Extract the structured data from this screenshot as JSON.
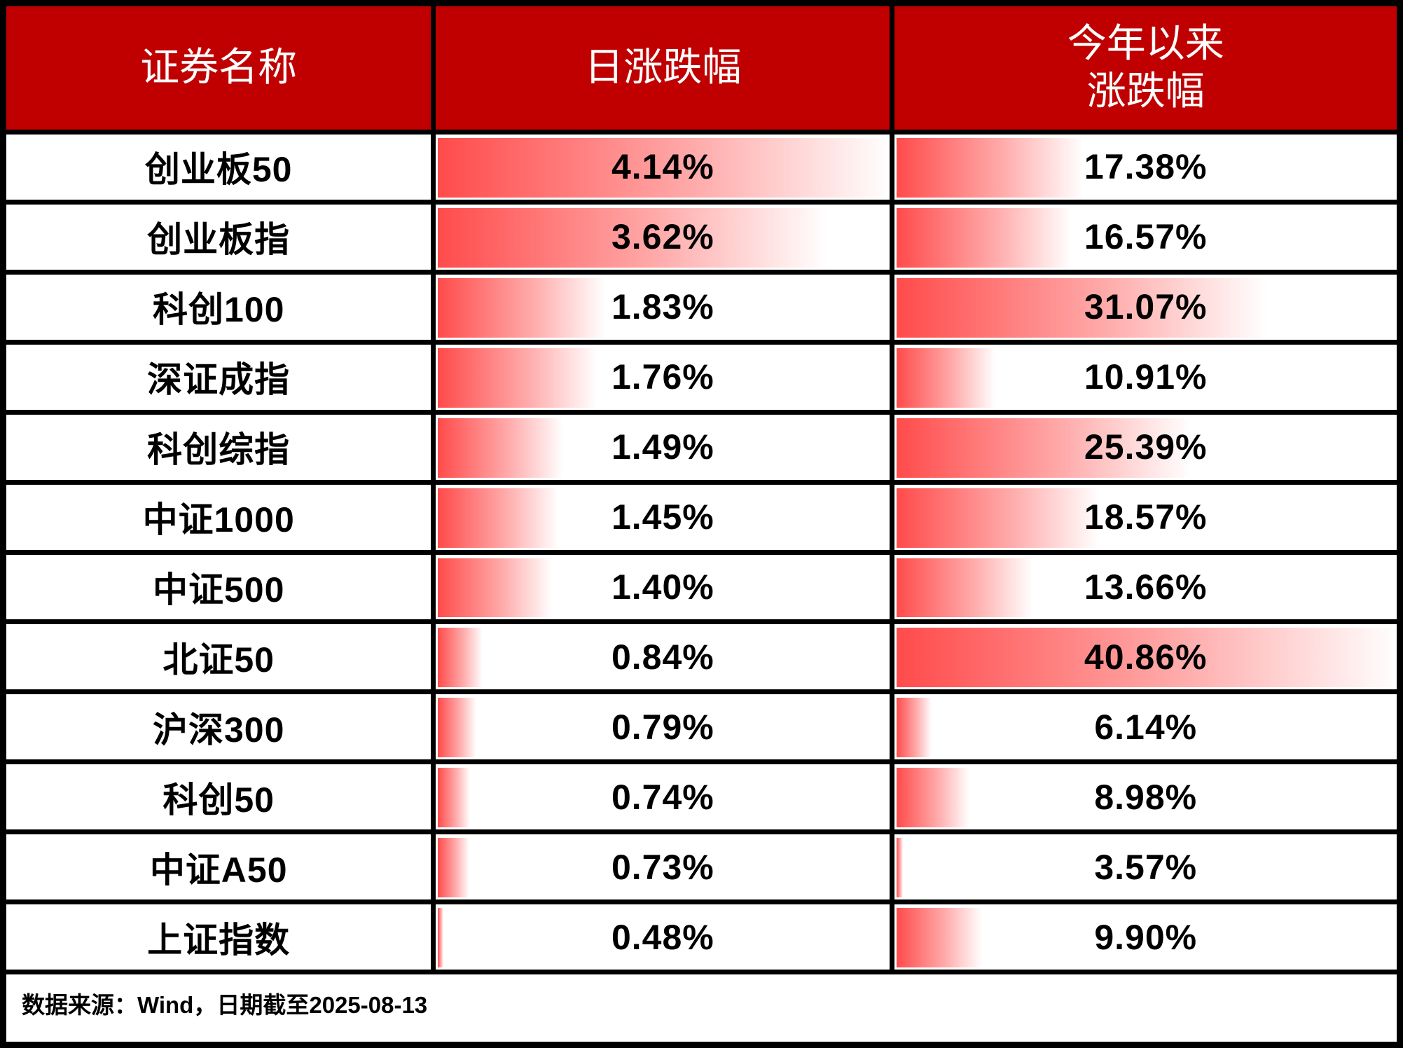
{
  "table": {
    "header": {
      "name_col": "证券名称",
      "daily_col": "日涨跌幅",
      "ytd_col_line1": "今年以来",
      "ytd_col_line2": "涨跌幅"
    },
    "rows": [
      {
        "name": "创业板50",
        "daily": "4.14%",
        "ytd": "17.38%"
      },
      {
        "name": "创业板指",
        "daily": "3.62%",
        "ytd": "16.57%"
      },
      {
        "name": "科创100",
        "daily": "1.83%",
        "ytd": "31.07%"
      },
      {
        "name": "深证成指",
        "daily": "1.76%",
        "ytd": "10.91%"
      },
      {
        "name": "科创综指",
        "daily": "1.49%",
        "ytd": "25.39%"
      },
      {
        "name": "中证1000",
        "daily": "1.45%",
        "ytd": "18.57%"
      },
      {
        "name": "中证500",
        "daily": "1.40%",
        "ytd": "13.66%"
      },
      {
        "name": "北证50",
        "daily": "0.84%",
        "ytd": "40.86%"
      },
      {
        "name": "沪深300",
        "daily": "0.79%",
        "ytd": "6.14%"
      },
      {
        "name": "科创50",
        "daily": "0.74%",
        "ytd": "8.98%"
      },
      {
        "name": "中证A50",
        "daily": "0.73%",
        "ytd": "3.57%"
      },
      {
        "name": "上证指数",
        "daily": "0.48%",
        "ytd": "9.90%"
      }
    ],
    "footer": "数据来源：Wind，日期截至2025-08-13"
  },
  "bar_scale": {
    "daily": {
      "min": 0.48,
      "max": 4.14
    },
    "ytd": {
      "min": 3.57,
      "max": 40.86
    },
    "min_pct": 1.2
  },
  "colors": {
    "header_bg": "#C00000",
    "header_text": "#FFFFFF",
    "bar_start": "#FF4B4B",
    "bar_mid": "#FFADAD",
    "bar_end": "#FFFFFF",
    "border": "#000000",
    "value_text": "#000000"
  },
  "chart_data": {
    "type": "table",
    "title": "",
    "columns": [
      "证券名称",
      "日涨跌幅",
      "今年以来涨跌幅"
    ],
    "categories": [
      "创业板50",
      "创业板指",
      "科创100",
      "深证成指",
      "科创综指",
      "中证1000",
      "中证500",
      "北证50",
      "沪深300",
      "科创50",
      "中证A50",
      "上证指数"
    ],
    "series": [
      {
        "name": "日涨跌幅",
        "unit": "%",
        "values": [
          4.14,
          3.62,
          1.83,
          1.76,
          1.49,
          1.45,
          1.4,
          0.84,
          0.79,
          0.74,
          0.73,
          0.48
        ]
      },
      {
        "name": "今年以来涨跌幅",
        "unit": "%",
        "values": [
          17.38,
          16.57,
          31.07,
          10.91,
          25.39,
          18.57,
          13.66,
          40.86,
          6.14,
          8.98,
          3.57,
          9.9
        ]
      }
    ],
    "databars": "gradient red-to-white, length scaled from column min to column max",
    "annotations": [
      "数据来源：Wind，日期截至2025-08-13"
    ]
  }
}
